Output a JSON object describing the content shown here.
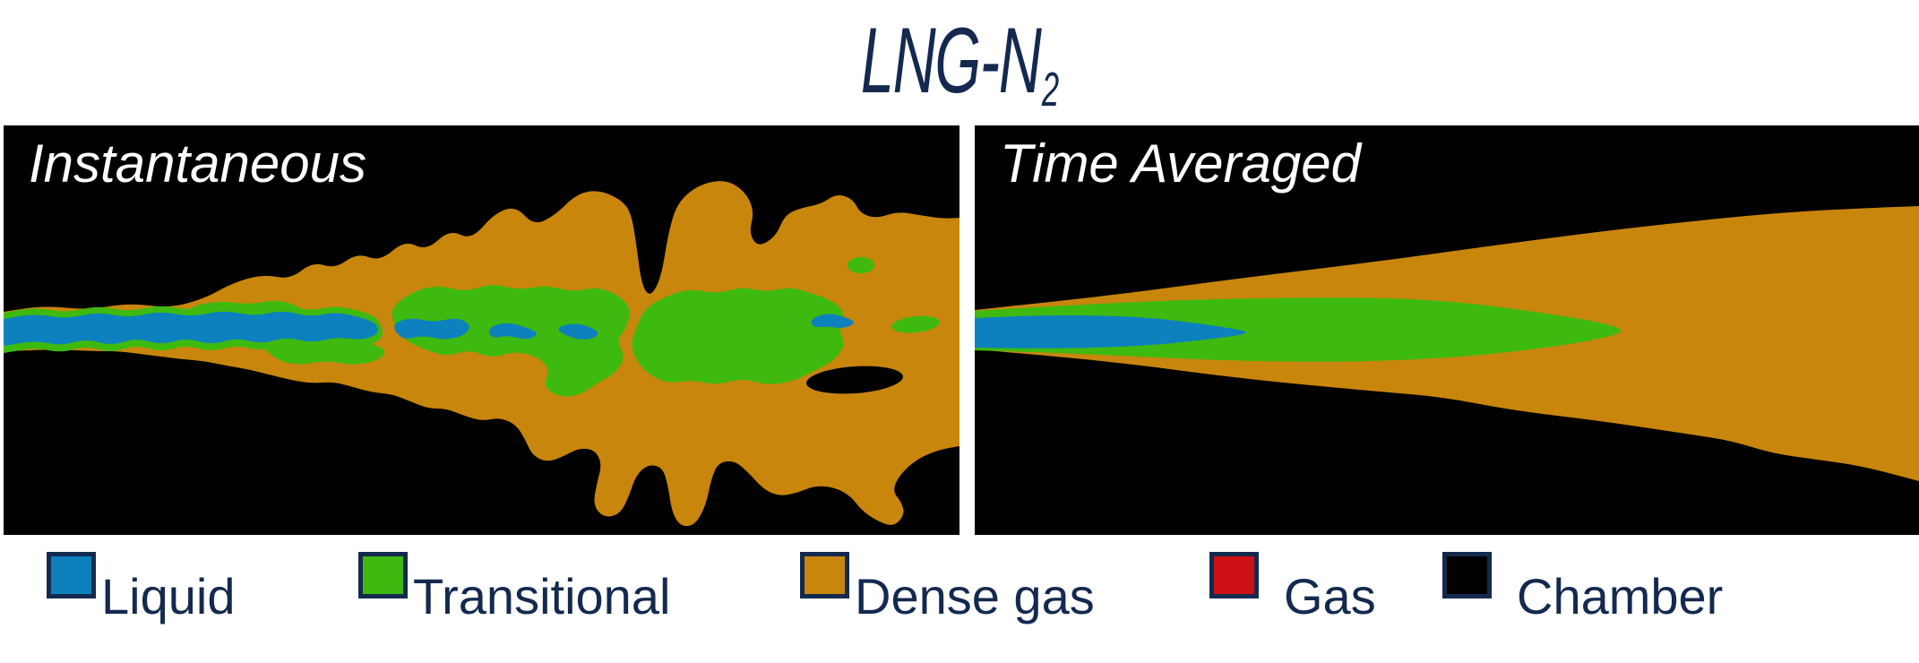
{
  "title": {
    "text": "LNG-N",
    "subscript": "2"
  },
  "panels": [
    {
      "label": "Instantaneous"
    },
    {
      "label": "Time Averaged"
    }
  ],
  "legend": {
    "items": [
      {
        "label": "Liquid",
        "color": "#0d80be"
      },
      {
        "label": "Transitional",
        "color": "#3eb90f"
      },
      {
        "label": "Dense gas",
        "color": "#c8860d"
      },
      {
        "label": "Gas",
        "color": "#cc1014"
      },
      {
        "label": "Chamber",
        "color": "#000000"
      }
    ]
  },
  "colors": {
    "liquid": "#0d80be",
    "transitional": "#3eb90f",
    "dense_gas": "#c8860d",
    "gas": "#cc1014",
    "chamber": "#000000",
    "swatch_border": "#132a4e",
    "text": "#14294f",
    "panel_label": "#ffffff",
    "background": "#ffffff"
  }
}
